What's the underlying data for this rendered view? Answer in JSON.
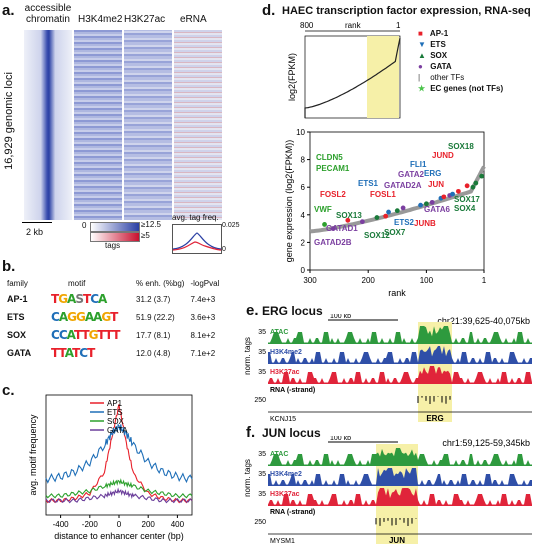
{
  "panel_a": {
    "label": "a.",
    "columns": [
      "accessible\nchromatin",
      "H3K4me2",
      "H3K27ac",
      "eRNA"
    ],
    "loci_label": "16,929 genomic loci",
    "scale_bar": "2 kb",
    "legend_blue": "≥12.5",
    "legend_red": "≥5",
    "legend_zero": "0",
    "legend_tags": "tags",
    "avg_label": "avg. tag freq.",
    "avg_max": "0.025",
    "avg_min": "0"
  },
  "panel_b": {
    "label": "b.",
    "headers": [
      "family",
      "motif",
      "% enh. (%bg)",
      "-logPval"
    ],
    "rows": [
      {
        "family": "AP-1",
        "motif": "TGASTCA",
        "enh": "31.2 (3.7)",
        "pval": "7.4e+3"
      },
      {
        "family": "ETS",
        "motif": "CAGGAAGT",
        "enh": "51.9 (22.2)",
        "pval": "3.6e+3"
      },
      {
        "family": "SOX",
        "motif": "CCATTGTTT",
        "enh": "17.7 (8.1)",
        "pval": "8.1e+2"
      },
      {
        "family": "GATA",
        "motif": "TTATCT",
        "enh": "12.0 (4.8)",
        "pval": "7.1e+2"
      }
    ]
  },
  "panel_c": {
    "label": "c.",
    "ylabel": "avg. motif frequency",
    "xlabel": "distance to enhancer center (bp)",
    "xticks": [
      "-400",
      "-200",
      "0",
      "200",
      "400"
    ],
    "legend": [
      {
        "name": "AP1",
        "color": "#e8212b"
      },
      {
        "name": "ETS",
        "color": "#1f6fb8"
      },
      {
        "name": "SOX",
        "color": "#2ca02c"
      },
      {
        "name": "GATA",
        "color": "#6a3d9a"
      }
    ]
  },
  "panel_d": {
    "label": "d.",
    "title": "HAEC transcription factor expression, RNA-seq",
    "top_left": "800",
    "top_mid": "rank",
    "top_right": "1",
    "top_ylabel": "log2(FPKM)",
    "ylabel": "gene expression (log2(FPKM))",
    "xlabel": "rank",
    "yticks": [
      "0",
      "2",
      "4",
      "6",
      "8",
      "10"
    ],
    "xticks": [
      "300",
      "200",
      "100",
      "1"
    ],
    "legend": [
      {
        "label": "AP-1",
        "color": "#e8212b",
        "icon": "square"
      },
      {
        "label": "ETS",
        "color": "#1f6fb8",
        "icon": "triangle-down"
      },
      {
        "label": "SOX",
        "color": "#1a7a3a",
        "icon": "triangle-up"
      },
      {
        "label": "GATA",
        "color": "#7b3fa0",
        "icon": "circle"
      },
      {
        "label": "other TFs",
        "color": "#888888",
        "icon": "bar"
      },
      {
        "label": "EC genes (not TFs)",
        "color": "#4cc44c",
        "icon": "star"
      }
    ],
    "genes": [
      {
        "name": "CLDN5",
        "color": "#2ca02c"
      },
      {
        "name": "PECAM1",
        "color": "#2ca02c"
      },
      {
        "name": "VWF",
        "color": "#2ca02c"
      },
      {
        "name": "FOSL2",
        "color": "#e8212b"
      },
      {
        "name": "FOSL1",
        "color": "#e8212b"
      },
      {
        "name": "ETS1",
        "color": "#1f6fb8"
      },
      {
        "name": "GATAD2A",
        "color": "#7b3fa0"
      },
      {
        "name": "GATA2",
        "color": "#7b3fa0"
      },
      {
        "name": "FLI1",
        "color": "#1f6fb8"
      },
      {
        "name": "ERG",
        "color": "#1f6fb8"
      },
      {
        "name": "JUN",
        "color": "#e8212b"
      },
      {
        "name": "JUND",
        "color": "#e8212b"
      },
      {
        "name": "SOX18",
        "color": "#1a7a3a"
      },
      {
        "name": "SOX17",
        "color": "#1a7a3a"
      },
      {
        "name": "SOX4",
        "color": "#1a7a3a"
      },
      {
        "name": "GATA6",
        "color": "#7b3fa0"
      },
      {
        "name": "JUNB",
        "color": "#e8212b"
      },
      {
        "name": "ETS2",
        "color": "#1f6fb8"
      },
      {
        "name": "SOX7",
        "color": "#1a7a3a"
      },
      {
        "name": "SOX12",
        "color": "#1a7a3a"
      },
      {
        "name": "SOX13",
        "color": "#1a7a3a"
      },
      {
        "name": "GATAD1",
        "color": "#7b3fa0"
      },
      {
        "name": "GATAD2B",
        "color": "#7b3fa0"
      }
    ]
  },
  "panel_e": {
    "label": "e.",
    "title": "ERG locus",
    "scale": "100 kb",
    "coords": "chr21:39,625-40,075kb",
    "ylabel": "norm. tags",
    "tracks": [
      {
        "name": "ATAC",
        "max": "35",
        "color": "#2e9a3e"
      },
      {
        "name": "H3K4me2",
        "max": "35",
        "color": "#2f4fa8"
      },
      {
        "name": "H3K27ac",
        "max": "35",
        "color": "#e0243a"
      }
    ],
    "rna_label": "RNA (-strand)",
    "rna_max": "250",
    "genes": [
      "KCNJ15",
      "ERG"
    ]
  },
  "panel_f": {
    "label": "f.",
    "title": "JUN locus",
    "scale": "100 kb",
    "coords": "chr1:59,125-59,345kb",
    "ylabel": "norm. tags",
    "tracks": [
      {
        "name": "ATAC",
        "max": "35",
        "color": "#2e9a3e"
      },
      {
        "name": "H3K4me2",
        "max": "35",
        "color": "#2f4fa8"
      },
      {
        "name": "H3K27ac",
        "max": "35",
        "color": "#e0243a"
      }
    ],
    "rna_label": "RNA (-strand)",
    "rna_max": "250",
    "genes": [
      "MYSM1",
      "JUN"
    ]
  },
  "chart_data": [
    {
      "type": "line",
      "panel": "c",
      "xlabel": "distance to enhancer center (bp)",
      "ylabel": "avg. motif frequency",
      "xlim": [
        -500,
        500
      ],
      "x": [
        -500,
        -400,
        -300,
        -200,
        -100,
        -50,
        0,
        50,
        100,
        200,
        300,
        400,
        500
      ],
      "series": [
        {
          "name": "AP1",
          "values": [
            0.6,
            0.6,
            0.7,
            0.9,
            1.8,
            3.2,
            4.6,
            3.0,
            1.7,
            0.9,
            0.7,
            0.6,
            0.6
          ]
        },
        {
          "name": "ETS",
          "values": [
            1.5,
            1.6,
            1.8,
            2.2,
            2.9,
            3.4,
            3.7,
            3.4,
            2.9,
            2.2,
            1.8,
            1.6,
            1.5
          ]
        },
        {
          "name": "SOX",
          "values": [
            0.8,
            0.8,
            0.9,
            1.0,
            1.2,
            1.3,
            1.4,
            1.3,
            1.2,
            1.0,
            0.9,
            0.8,
            0.8
          ]
        },
        {
          "name": "GATA",
          "values": [
            0.6,
            0.6,
            0.6,
            0.7,
            0.8,
            0.9,
            1.0,
            0.9,
            0.8,
            0.7,
            0.6,
            0.6,
            0.6
          ]
        }
      ]
    },
    {
      "type": "scatter",
      "panel": "d",
      "xlabel": "rank",
      "ylabel": "gene expression (log2(FPKM))",
      "xlim": [
        300,
        1
      ],
      "ylim": [
        0,
        10
      ],
      "points": [
        {
          "name": "VWF",
          "rank": 275,
          "value": 3.3
        },
        {
          "name": "GATAD2B",
          "rank": 260,
          "value": 3.0
        },
        {
          "name": "GATAD1",
          "rank": 210,
          "value": 3.5
        },
        {
          "name": "FOSL2",
          "rank": 235,
          "value": 3.6
        },
        {
          "name": "SOX13",
          "rank": 185,
          "value": 3.8
        },
        {
          "name": "FOSL1",
          "rank": 170,
          "value": 3.9
        },
        {
          "name": "ETS1",
          "rank": 165,
          "value": 4.2
        },
        {
          "name": "SOX12",
          "rank": 150,
          "value": 4.3
        },
        {
          "name": "GATAD2A",
          "rank": 140,
          "value": 4.5
        },
        {
          "name": "ETS2",
          "rank": 110,
          "value": 4.7
        },
        {
          "name": "SOX7",
          "rank": 100,
          "value": 4.8
        },
        {
          "name": "GATA2",
          "rank": 90,
          "value": 4.9
        },
        {
          "name": "FLI1",
          "rank": 75,
          "value": 5.2
        },
        {
          "name": "JUNB",
          "rank": 70,
          "value": 5.3
        },
        {
          "name": "GATA6",
          "rank": 60,
          "value": 5.4
        },
        {
          "name": "ERG",
          "rank": 55,
          "value": 5.5
        },
        {
          "name": "JUN",
          "rank": 45,
          "value": 5.7
        },
        {
          "name": "SOX4",
          "rank": 20,
          "value": 6.0
        },
        {
          "name": "SOX17",
          "rank": 15,
          "value": 6.3
        },
        {
          "name": "JUND",
          "rank": 30,
          "value": 6.1
        },
        {
          "name": "SOX18",
          "rank": 5,
          "value": 6.8
        }
      ]
    }
  ]
}
